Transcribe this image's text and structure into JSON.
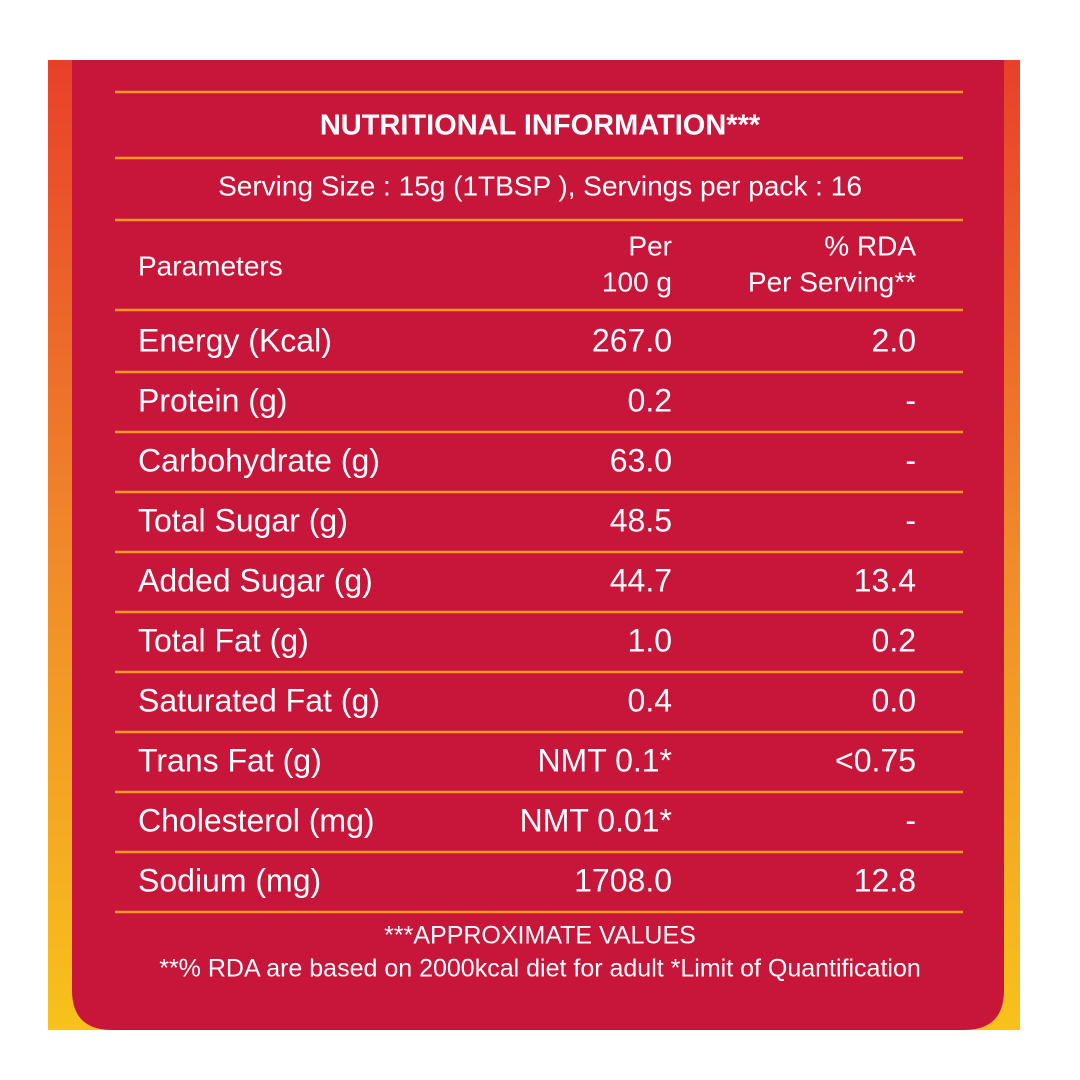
{
  "title": "NUTRITIONAL INFORMATION***",
  "serving": "Serving Size : 15g (1TBSP ),  Servings per pack : 16",
  "header": {
    "parameter": "Parameters",
    "per_100g": [
      "Per",
      "100 g"
    ],
    "rda": [
      "% RDA",
      "Per Serving**"
    ]
  },
  "rows": [
    [
      "Energy (Kcal)",
      "267.0",
      "2.0"
    ],
    [
      "Protein (g)",
      "0.2",
      "-"
    ],
    [
      "Carbohydrate (g)",
      "63.0",
      "-"
    ],
    [
      "Total Sugar (g)",
      "48.5",
      "-"
    ],
    [
      "Added Sugar (g)",
      "44.7",
      "13.4"
    ],
    [
      "Total Fat (g)",
      "1.0",
      "0.2"
    ],
    [
      "Saturated Fat (g)",
      "0.4",
      "0.0"
    ],
    [
      "Trans Fat (g)",
      "NMT 0.1*",
      "<0.75"
    ],
    [
      "Cholesterol (mg)",
      "NMT 0.01*",
      "-"
    ],
    [
      "Sodium (mg)",
      "1708.0",
      "12.8"
    ]
  ],
  "footnotes": [
    "***APPROXIMATE VALUES",
    "**% RDA are based on 2000kcal diet for adult *Limit of Quantification"
  ]
}
